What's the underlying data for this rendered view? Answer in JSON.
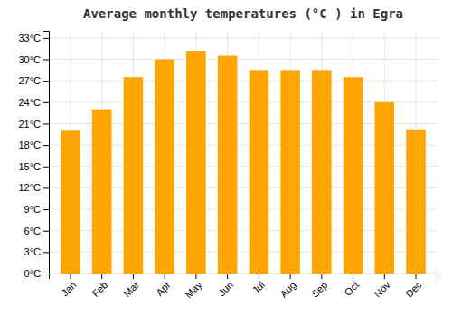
{
  "chart_data": {
    "type": "bar",
    "title": "Average monthly temperatures (°C ) in Egra",
    "categories": [
      "Jan",
      "Feb",
      "Mar",
      "Apr",
      "May",
      "Jun",
      "Jul",
      "Aug",
      "Sep",
      "Oct",
      "Nov",
      "Dec"
    ],
    "values": [
      20.0,
      23.0,
      27.5,
      30.0,
      31.2,
      30.5,
      28.5,
      28.5,
      28.5,
      27.5,
      24.0,
      20.2
    ],
    "color": "#FFA500",
    "ylim": [
      0,
      34
    ],
    "yticks": [
      {
        "value": 0,
        "label": "0°C"
      },
      {
        "value": 3,
        "label": "3°C"
      },
      {
        "value": 6,
        "label": "6°C"
      },
      {
        "value": 9,
        "label": "9°C"
      },
      {
        "value": 12,
        "label": "12°C"
      },
      {
        "value": 15,
        "label": "15°C"
      },
      {
        "value": 18,
        "label": "18°C"
      },
      {
        "value": 21,
        "label": "21°C"
      },
      {
        "value": 24,
        "label": "24°C"
      },
      {
        "value": 27,
        "label": "27°C"
      },
      {
        "value": 30,
        "label": "30°C"
      },
      {
        "value": 33,
        "label": "33°C"
      }
    ],
    "grid": true
  }
}
